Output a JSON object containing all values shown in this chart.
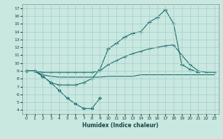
{
  "xlabel": "Humidex (Indice chaleur)",
  "xlim": [
    -0.5,
    23.5
  ],
  "ylim": [
    3.5,
    17.5
  ],
  "xticks": [
    0,
    1,
    2,
    3,
    4,
    5,
    6,
    7,
    8,
    9,
    10,
    11,
    12,
    13,
    14,
    15,
    16,
    17,
    18,
    19,
    20,
    21,
    22,
    23
  ],
  "yticks": [
    4,
    5,
    6,
    7,
    8,
    9,
    10,
    11,
    12,
    13,
    14,
    15,
    16,
    17
  ],
  "bg_color": "#c8e8e0",
  "line_color": "#1a6b6b",
  "grid_color": "#a8cccc",
  "lines": [
    {
      "x": [
        0,
        1,
        2,
        3,
        4,
        5,
        6,
        7,
        8,
        9
      ],
      "y": [
        9.0,
        9.0,
        8.3,
        7.5,
        6.5,
        5.5,
        4.8,
        4.2,
        4.2,
        5.5
      ],
      "marker": "D",
      "markersize": 2.0
    },
    {
      "x": [
        0,
        1,
        2,
        3,
        4,
        5,
        6,
        7,
        8,
        9,
        10,
        11,
        12,
        13,
        14,
        15,
        16,
        17,
        18,
        19,
        20,
        21
      ],
      "y": [
        9.0,
        9.0,
        8.3,
        7.5,
        7.2,
        7.2,
        7.2,
        7.5,
        8.0,
        9.2,
        11.8,
        12.5,
        13.3,
        13.8,
        14.0,
        15.2,
        15.8,
        16.8,
        15.0,
        9.8,
        9.2,
        8.8
      ],
      "marker": "+",
      "markersize": 4.0
    },
    {
      "x": [
        0,
        1,
        2,
        3,
        4,
        5,
        6,
        7,
        8,
        9,
        10,
        11,
        12,
        13,
        14,
        15,
        16,
        17,
        18,
        19,
        20,
        21,
        22,
        23
      ],
      "y": [
        9.0,
        9.0,
        8.8,
        8.8,
        8.8,
        8.8,
        8.8,
        8.8,
        8.8,
        9.0,
        9.8,
        10.3,
        10.8,
        11.2,
        11.5,
        11.8,
        12.0,
        12.2,
        12.3,
        11.0,
        9.8,
        9.0,
        8.8,
        8.8
      ],
      "marker": "+",
      "markersize": 3.0
    },
    {
      "x": [
        0,
        1,
        2,
        3,
        4,
        5,
        6,
        7,
        8,
        9,
        10,
        11,
        12,
        13,
        14,
        15,
        16,
        17,
        18,
        19,
        20,
        21,
        22,
        23
      ],
      "y": [
        9.0,
        9.0,
        8.5,
        8.3,
        8.2,
        8.2,
        8.2,
        8.2,
        8.2,
        8.2,
        8.3,
        8.3,
        8.3,
        8.3,
        8.5,
        8.5,
        8.5,
        8.5,
        8.5,
        8.5,
        8.5,
        8.5,
        8.5,
        8.5
      ],
      "marker": null,
      "markersize": 0
    }
  ]
}
